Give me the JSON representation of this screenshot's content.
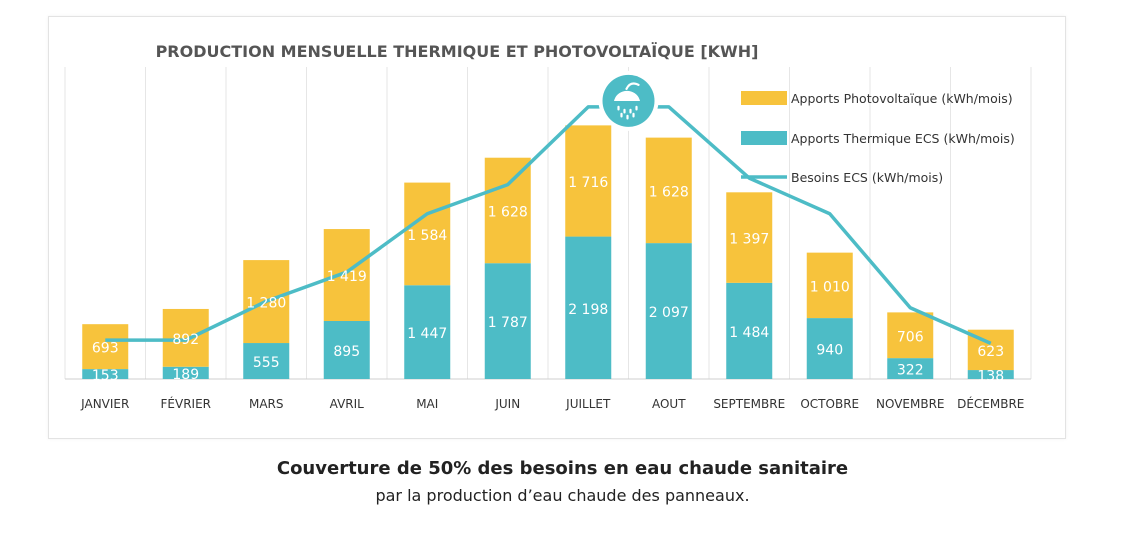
{
  "chart_data": {
    "type": "bar",
    "stacked": true,
    "title": "PRODUCTION MENSUELLE THERMIQUE ET PHOTOVOLTAÏQUE [KWH]",
    "categories": [
      "JANVIER",
      "FÉVRIER",
      "MARS",
      "AVRIL",
      "MAI",
      "JUIN",
      "JUILLET",
      "AOUT",
      "SEPTEMBRE",
      "OCTOBRE",
      "NOVEMBRE",
      "DÉCEMBRE"
    ],
    "series": [
      {
        "name": "Apports Thermique ECS (kWh/mois)",
        "type": "bar",
        "color": "#4dbcc6",
        "values": [
          153,
          189,
          555,
          895,
          1447,
          1787,
          2198,
          2097,
          1484,
          940,
          322,
          138
        ],
        "labels": [
          "153",
          "189",
          "555",
          "895",
          "1 447",
          "1 787",
          "2 198",
          "2 097",
          "1 484",
          "940",
          "322",
          "138"
        ]
      },
      {
        "name": "Apports Photovoltaïque (kWh/mois)",
        "type": "bar",
        "color": "#f7c33c",
        "values": [
          693,
          892,
          1280,
          1419,
          1584,
          1628,
          1716,
          1628,
          1397,
          1010,
          706,
          623
        ],
        "labels": [
          "693",
          "892",
          "1 280",
          "1 419",
          "1 584",
          "1 628",
          "1 716",
          "1 628",
          "1 397",
          "1 010",
          "706",
          "623"
        ]
      },
      {
        "name": "Besoins ECS  (kWh/mois)",
        "type": "line",
        "color": "#4dbcc6",
        "values": [
          600,
          600,
          1200,
          1650,
          2550,
          3000,
          4200,
          4200,
          3100,
          2550,
          1100,
          550
        ]
      }
    ],
    "ylim": [
      0,
      4300
    ],
    "grid": "vertical",
    "legend": "top-right",
    "marker_icon": "shower-icon"
  },
  "caption": {
    "main": "Couverture de 50% des besoins en eau chaude sanitaire",
    "sub": "par la production d’eau chaude des panneaux."
  }
}
